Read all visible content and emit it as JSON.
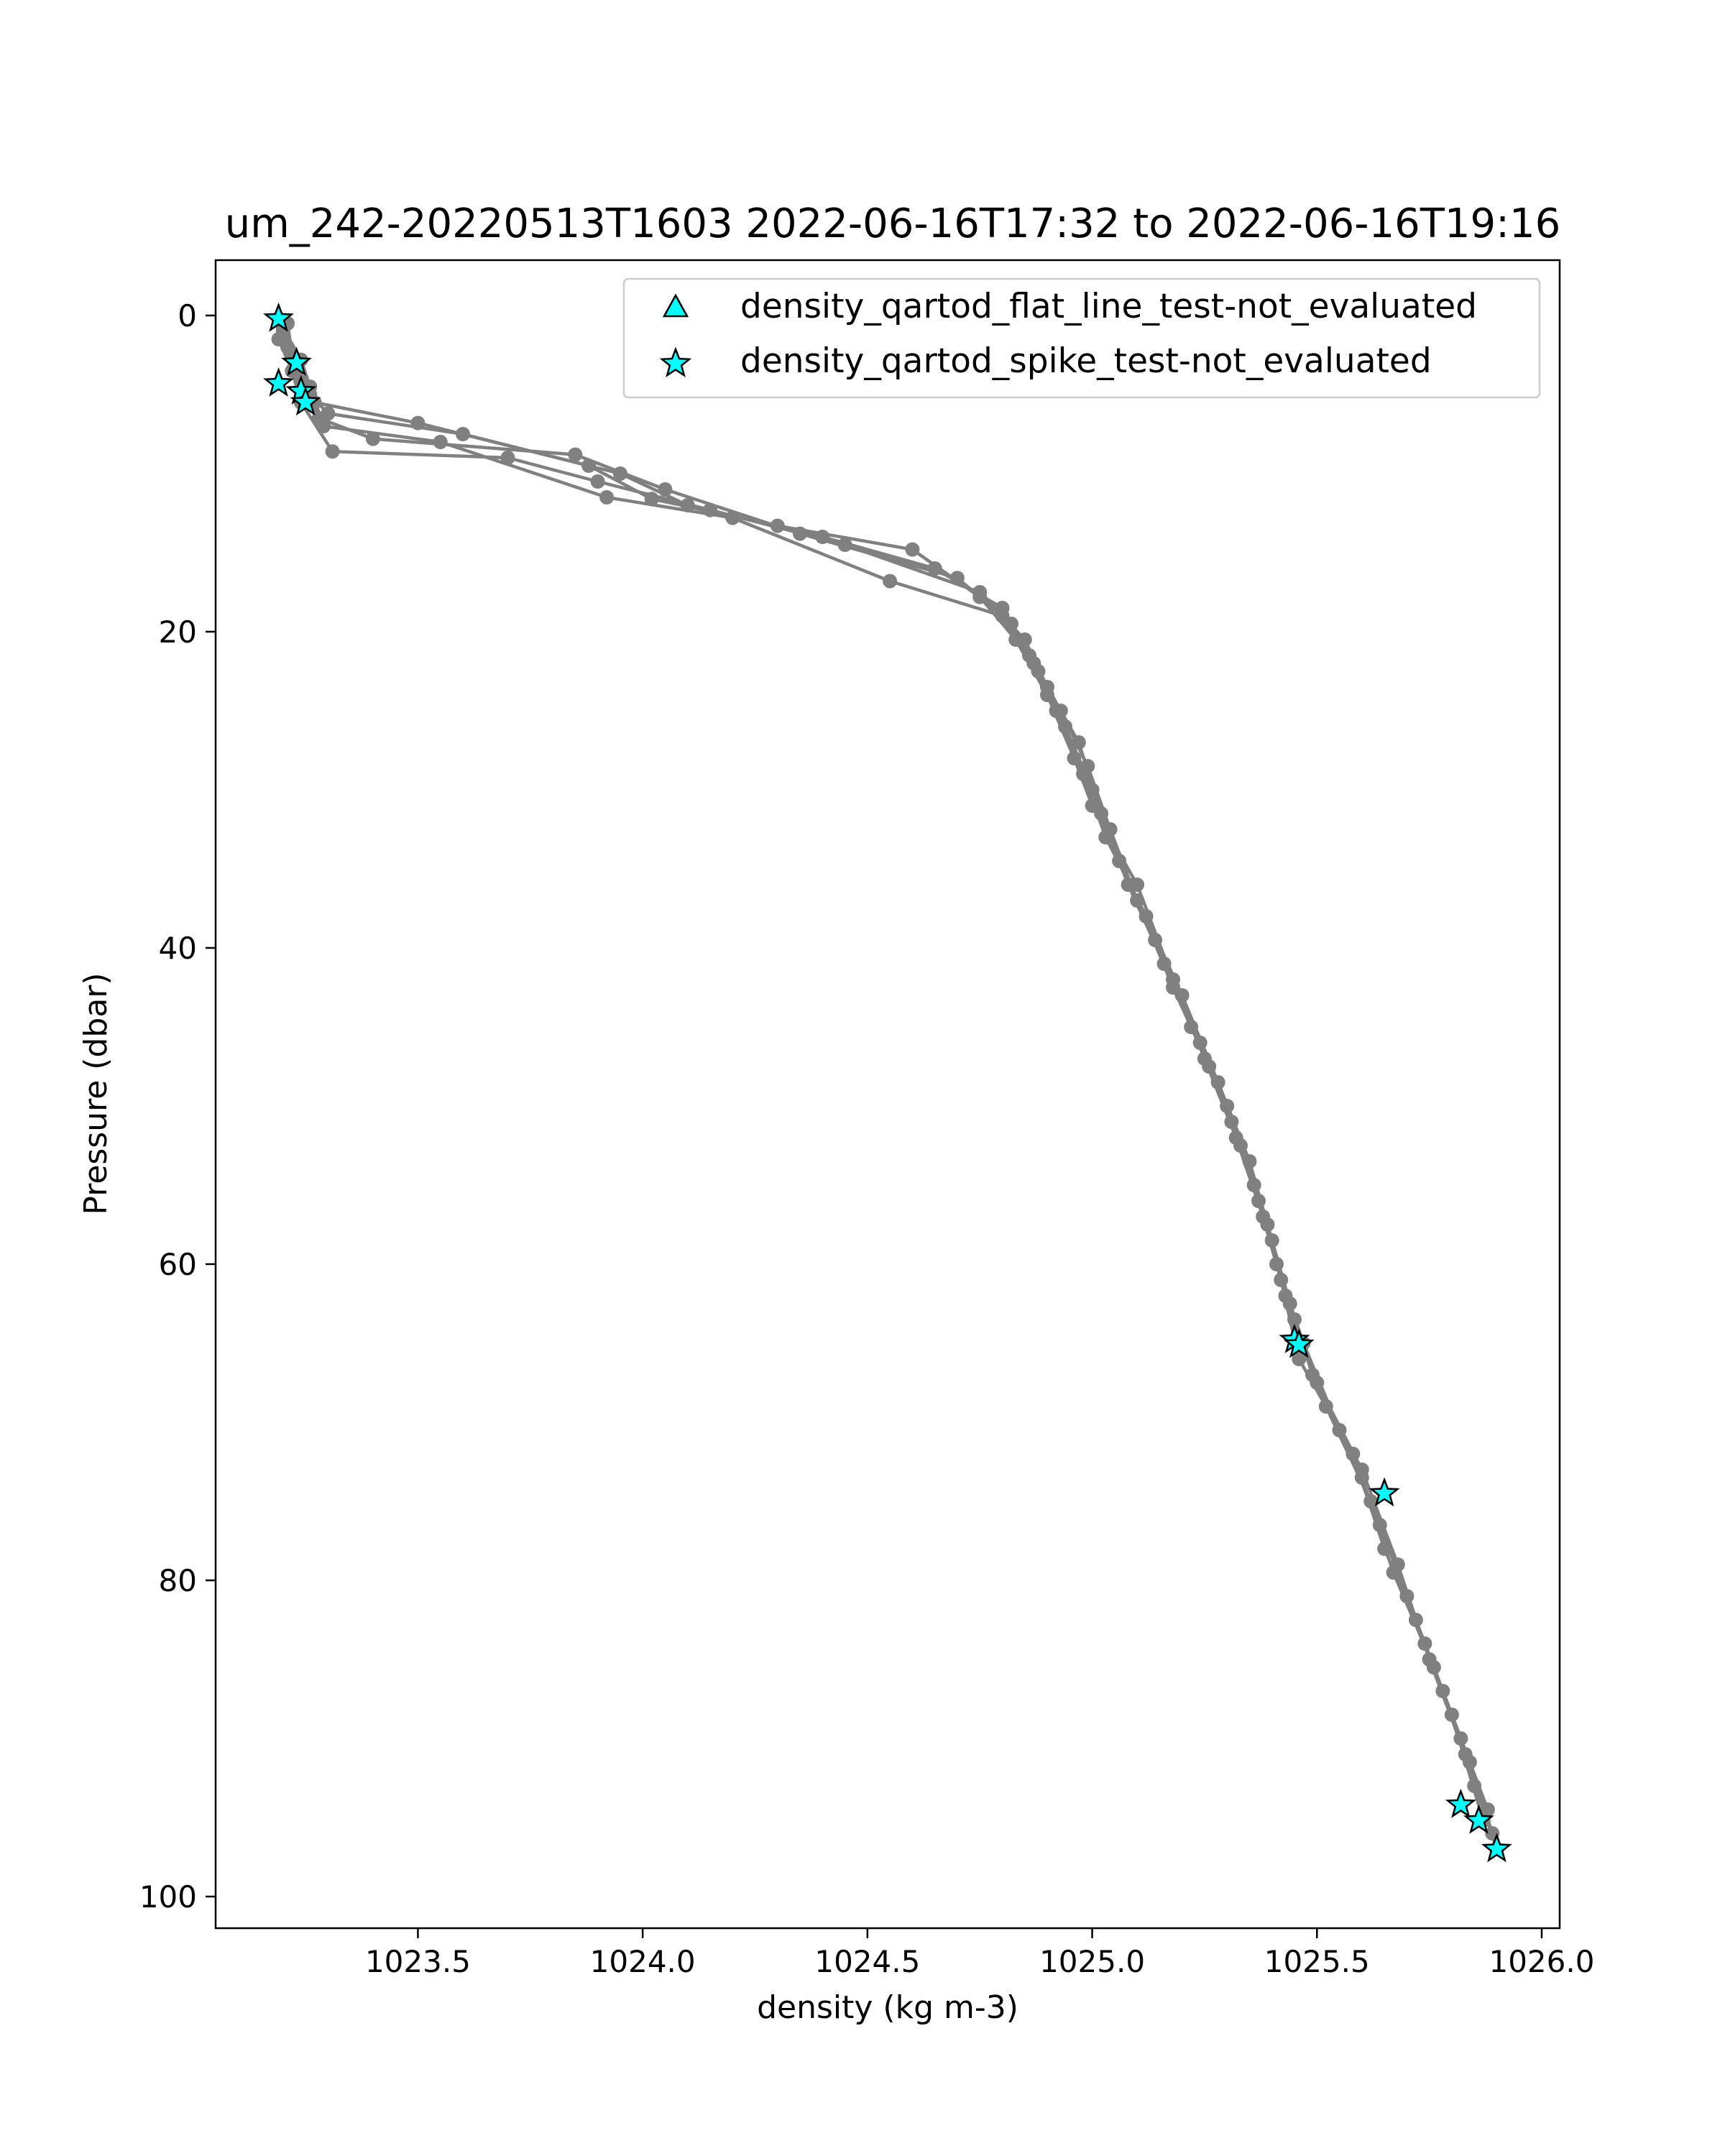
{
  "chart_data": {
    "type": "line",
    "title": "um_242-20220513T1603 2022-06-16T17:32 to 2022-06-16T19:16",
    "xlabel": "density (kg m-3)",
    "ylabel": "Pressure (dbar)",
    "xlim": [
      1023.05,
      1026.04
    ],
    "ylim": [
      102,
      -3.5
    ],
    "y_inverted": true,
    "grid": false,
    "legend_position": "top-right",
    "x_ticks": [
      1023.5,
      1024.0,
      1024.5,
      1025.0,
      1025.5,
      1026.0
    ],
    "x_tick_labels": [
      "1023.5",
      "1024.0",
      "1024.5",
      "1025.0",
      "1025.5",
      "1026.0"
    ],
    "y_ticks": [
      0,
      20,
      40,
      60,
      80,
      100
    ],
    "y_tick_labels": [
      "0",
      "20",
      "40",
      "60",
      "80",
      "100"
    ],
    "colors": {
      "profile": "#808080",
      "marker_fill": "#00ffff",
      "marker_edge": "#000000"
    },
    "profiles": [
      {
        "x": [
          1023.19,
          1023.21,
          1023.24,
          1023.27,
          1023.5,
          1023.88,
          1024.02,
          1024.3,
          1024.6,
          1024.75,
          1024.83,
          1024.9,
          1024.96,
          1025.0,
          1025.1,
          1025.18,
          1025.25,
          1025.32,
          1025.38,
          1025.43,
          1025.5,
          1025.6,
          1025.68,
          1025.75,
          1025.83,
          1025.9
        ],
        "y": [
          0.2,
          2.0,
          4.2,
          5.5,
          6.8,
          9.5,
          11.6,
          13.3,
          14.8,
          17.8,
          20.5,
          24.0,
          28.0,
          31.0,
          36.0,
          42.0,
          47.0,
          52.0,
          57.0,
          62.0,
          67.5,
          73.0,
          79.0,
          85.0,
          91.0,
          97.0
        ]
      },
      {
        "x": [
          1023.2,
          1023.23,
          1023.26,
          1023.3,
          1023.6,
          1023.95,
          1024.1,
          1024.4,
          1024.65,
          1024.8,
          1024.86,
          1024.92,
          1024.98,
          1025.03,
          1025.12,
          1025.2,
          1025.28,
          1025.35,
          1025.4,
          1025.45,
          1025.52,
          1025.62,
          1025.7,
          1025.78,
          1025.85
        ],
        "y": [
          1.0,
          3.0,
          5.0,
          6.2,
          7.5,
          10.0,
          12.0,
          14.0,
          16.0,
          18.5,
          21.5,
          25.0,
          29.0,
          33.0,
          38.0,
          43.0,
          48.5,
          53.5,
          58.5,
          63.5,
          69.0,
          75.0,
          81.0,
          87.0,
          93.0
        ]
      },
      {
        "x": [
          1023.21,
          1023.22,
          1023.25,
          1023.28,
          1023.4,
          1023.85,
          1024.05,
          1024.35,
          1024.7,
          1024.82,
          1024.88,
          1024.94,
          1025.0,
          1025.06,
          1025.14,
          1025.22,
          1025.3,
          1025.36,
          1025.41,
          1025.47,
          1025.55,
          1025.64,
          1025.72,
          1025.8,
          1025.87
        ],
        "y": [
          0.5,
          2.5,
          4.8,
          6.5,
          7.8,
          8.8,
          11.0,
          13.8,
          16.6,
          19.5,
          22.5,
          26.0,
          30.0,
          34.5,
          39.5,
          45.0,
          50.0,
          55.0,
          60.0,
          65.0,
          70.5,
          76.5,
          82.5,
          88.5,
          95.2
        ]
      },
      {
        "x": [
          1023.19,
          1023.22,
          1023.24,
          1023.31,
          1023.7,
          1023.9,
          1024.15,
          1024.45,
          1024.75,
          1024.85,
          1024.9,
          1024.97,
          1025.02,
          1025.08,
          1025.16,
          1025.24,
          1025.31,
          1025.37,
          1025.42,
          1025.46,
          1025.58,
          1025.65,
          1025.74,
          1025.82,
          1025.88
        ],
        "y": [
          1.5,
          3.5,
          5.5,
          8.6,
          9.0,
          10.5,
          12.3,
          14.5,
          17.5,
          20.5,
          23.5,
          27.0,
          31.5,
          36.0,
          41.0,
          46.0,
          51.0,
          56.0,
          61.0,
          66.0,
          72.0,
          78.0,
          84.0,
          90.0,
          94.5
        ]
      },
      {
        "x": [
          1023.2,
          1023.24,
          1023.26,
          1023.29,
          1023.55,
          1023.92,
          1024.2,
          1024.55,
          1024.8,
          1024.87,
          1024.93,
          1024.99,
          1025.04,
          1025.1,
          1025.18,
          1025.26,
          1025.33,
          1025.39,
          1025.44,
          1025.49,
          1025.6,
          1025.67,
          1025.76,
          1025.84,
          1025.89
        ],
        "y": [
          0.8,
          2.8,
          4.5,
          7.0,
          8.0,
          11.5,
          12.8,
          16.8,
          19.0,
          22.0,
          25.0,
          28.5,
          32.5,
          37.0,
          42.5,
          47.5,
          52.5,
          57.5,
          62.5,
          67.0,
          73.5,
          79.5,
          85.5,
          91.5,
          96.0
        ]
      }
    ],
    "series": [
      {
        "name": "density_qartod_flat_line_test-not_evaluated",
        "marker": "triangle",
        "x": [],
        "y": []
      },
      {
        "name": "density_qartod_spike_test-not_evaluated",
        "marker": "star",
        "x": [
          1023.19,
          1023.23,
          1023.19,
          1023.24,
          1023.25,
          1025.45,
          1025.46,
          1025.65,
          1025.82,
          1025.86,
          1025.9
        ],
        "y": [
          0.2,
          3.0,
          4.3,
          4.8,
          5.5,
          64.8,
          65.1,
          74.5,
          94.2,
          95.2,
          97.0
        ]
      }
    ]
  }
}
